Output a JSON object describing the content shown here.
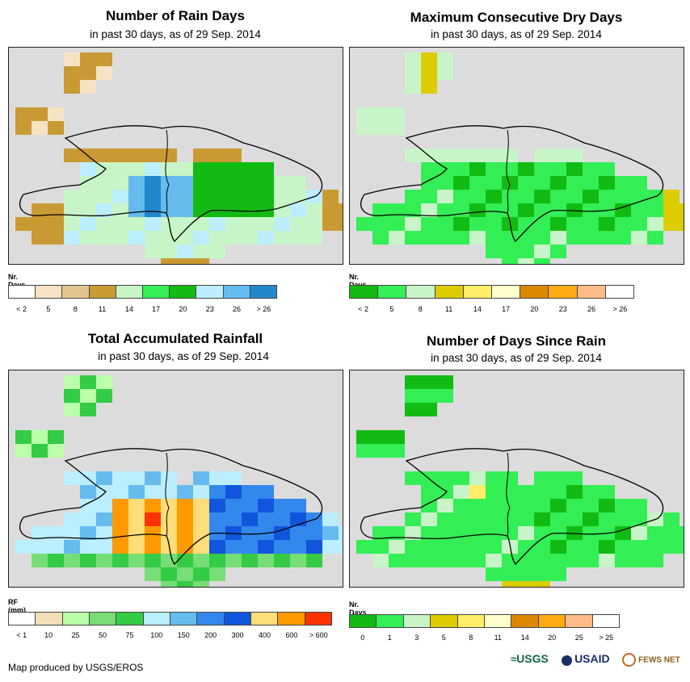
{
  "panels": {
    "rain_days": {
      "title": "Number of Rain Days",
      "subtitle": "in past 30 days, as of 29 Sep. 2014",
      "legend_title": "Nr. Days",
      "legend_colors": [
        "#ffffff",
        "#f6e3c5",
        "#e3c48f",
        "#c99a33",
        "#c8f5c8",
        "#33ee55",
        "#11bb11",
        "#bbeeff",
        "#66bbee",
        "#2288cc"
      ],
      "legend_ticks": [
        "< 2",
        "5",
        "8",
        "11",
        "14",
        "17",
        "20",
        "23",
        "26",
        "> 26"
      ]
    },
    "dry_days": {
      "title": "Maximum Consecutive Dry Days",
      "subtitle": "in past 30 days, as of 29 Sep. 2014",
      "legend_title": "Nr. Days",
      "legend_colors": [
        "#11bb11",
        "#33ee55",
        "#c8f5c8",
        "#ddcc00",
        "#ffee66",
        "#ffffcc",
        "#dd8800",
        "#ffaa11",
        "#ffbb88",
        "#ffffff"
      ],
      "legend_ticks": [
        "< 2",
        "5",
        "8",
        "11",
        "14",
        "17",
        "20",
        "23",
        "26",
        "> 26"
      ]
    },
    "rainfall": {
      "title": "Total Accumulated Rainfall",
      "subtitle": "in past 30 days, as of 29 Sep. 2014",
      "legend_title": "RF (mm)",
      "legend_colors": [
        "#ffffff",
        "#f3deb8",
        "#bbffaa",
        "#77dd77",
        "#33cc44",
        "#bbeeff",
        "#66bbee",
        "#3388ee",
        "#1155dd",
        "#ffdd77",
        "#ff9900",
        "#ff3300"
      ],
      "legend_ticks": [
        "< 1",
        "10",
        "25",
        "50",
        "75",
        "100",
        "150",
        "200",
        "300",
        "400",
        "600",
        "> 600"
      ]
    },
    "days_since": {
      "title": "Number of Days Since Rain",
      "subtitle": "in past 30 days, as of 29 Sep. 2014",
      "legend_title": "Nr. Days",
      "legend_colors": [
        "#11bb11",
        "#33ee55",
        "#c8f5c8",
        "#ddcc00",
        "#ffee66",
        "#ffffcc",
        "#dd8800",
        "#ffaa11",
        "#ffbb88",
        "#ffffff"
      ],
      "legend_ticks": [
        "0",
        "1",
        "3",
        "5",
        "8",
        "11",
        "14",
        "20",
        "25",
        "> 25"
      ]
    }
  },
  "credit": "Map produced by USGS/EROS",
  "logos": {
    "usgs": "USGS",
    "usaid": "USAID",
    "fewsnet": "FEWS NET"
  }
}
